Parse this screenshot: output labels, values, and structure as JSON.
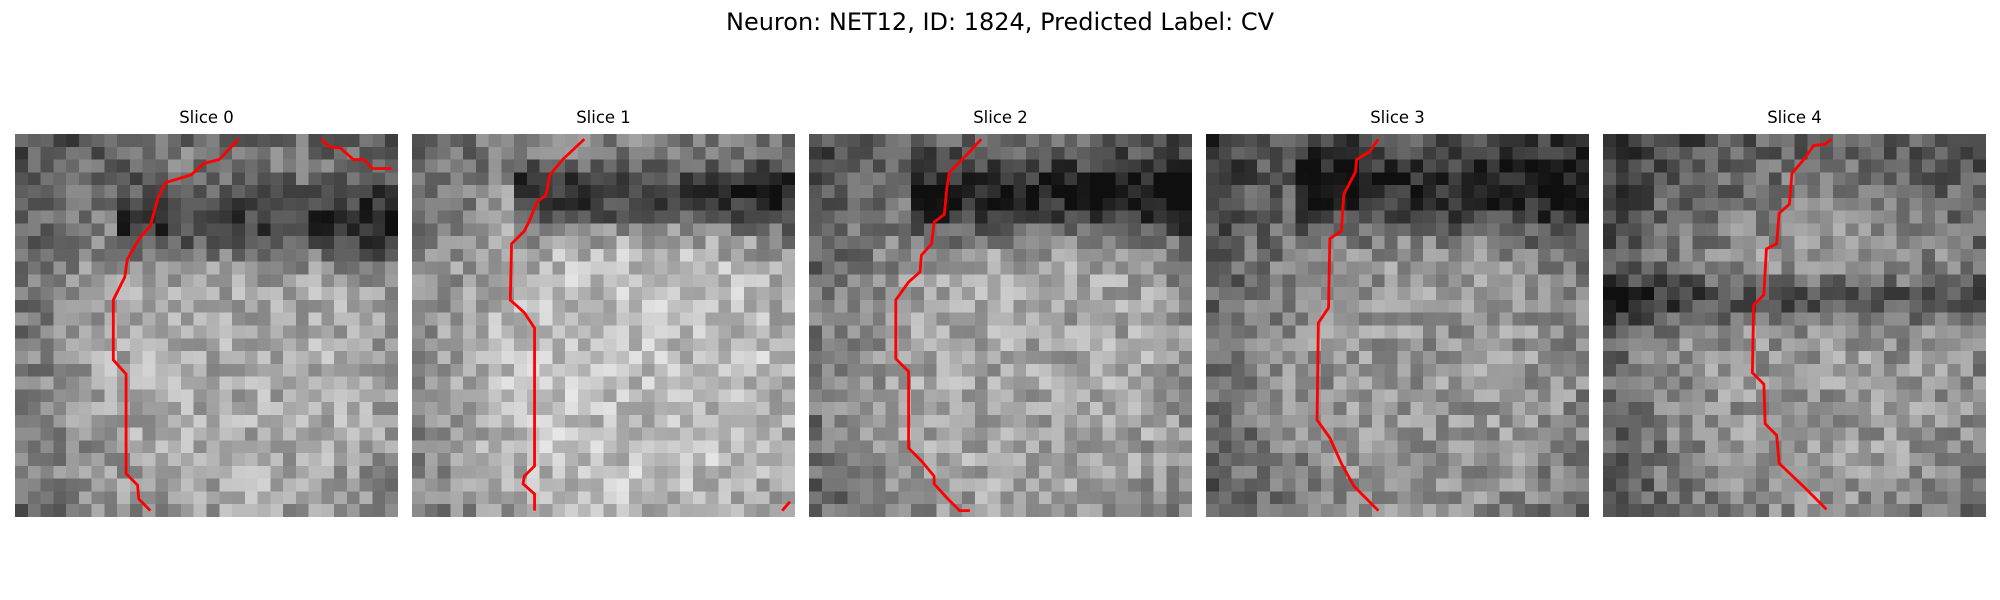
{
  "figure": {
    "title": "Neuron: NET12, ID: 1824, Predicted Label: CV"
  },
  "colors": {
    "background": "#ffffff",
    "contour": "#ff0000",
    "text": "#000000"
  },
  "panels": [
    {
      "label": "Slice 0"
    },
    {
      "label": "Slice 1"
    },
    {
      "label": "Slice 2"
    },
    {
      "label": "Slice 3"
    },
    {
      "label": "Slice 4"
    }
  ]
}
